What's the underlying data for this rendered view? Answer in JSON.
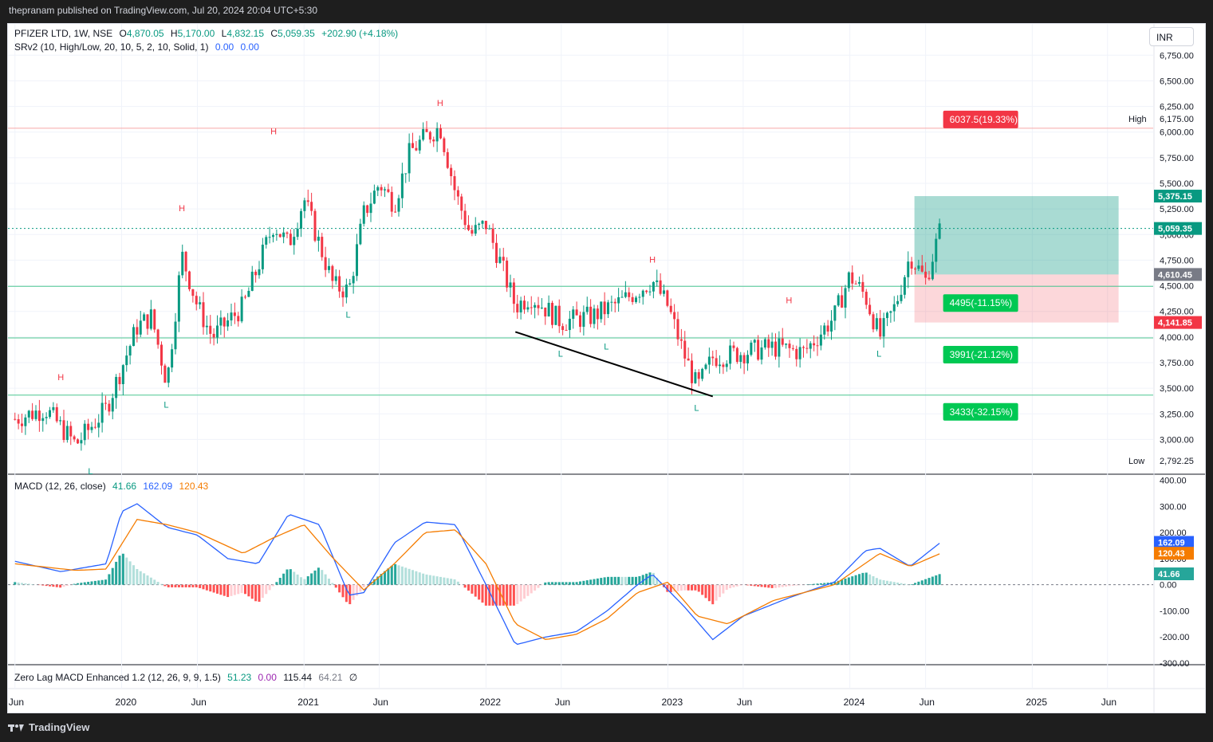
{
  "header": {
    "publisher": "thepranam published on TradingView.com, Jul 20, 2024 20:04 UTC+5:30"
  },
  "footer": {
    "brand": "TradingView"
  },
  "currency": "INR",
  "symbol_legend": {
    "name": "PFIZER LTD, 1W, NSE",
    "open_label": "O",
    "open": "4,870.05",
    "high_label": "H",
    "high": "5,170.00",
    "low_label": "L",
    "low": "4,832.15",
    "close_label": "C",
    "close": "5,059.35",
    "change": "+202.90 (+4.18%)"
  },
  "srv2_legend": {
    "text": "SRv2 (10, High/Low, 20, 10, 5, 2, 10, Solid, 1)",
    "v1": "0.00",
    "v2": "0.00"
  },
  "macd_legend": {
    "text": "MACD (12, 26, close)",
    "hist": "41.66",
    "macd": "162.09",
    "signal": "120.43"
  },
  "zl_legend": {
    "text": "Zero Lag MACD Enhanced 1.2 (12, 26, 9, 9, 1.5)",
    "v1": "51.23",
    "v2": "0.00",
    "v3": "115.44",
    "v4": "64.21",
    "v5": "∅"
  },
  "colors": {
    "up": "#089981",
    "down": "#f23645",
    "macd": "#2962ff",
    "signal": "#f57c00",
    "srline": "#4cc790",
    "resline": "#f7a8a8"
  },
  "chart_data": [
    {
      "type": "candlestick",
      "x_axis_labels": [
        "Jun",
        "2020",
        "Jun",
        "2021",
        "Jun",
        "2022",
        "Jun",
        "2023",
        "Jun",
        "2024",
        "Jun",
        "2025",
        "Jun"
      ],
      "y_ticks": [
        "6,750.00",
        "6,500.00",
        "6,250.00",
        "6,000.00",
        "5,750.00",
        "5,500.00",
        "5,250.00",
        "5,000.00",
        "4,750.00",
        "4,500.00",
        "4,250.00",
        "4,000.00",
        "3,750.00",
        "3,500.00",
        "3,250.00",
        "3,000.00"
      ],
      "ylim": [
        2700,
        6900
      ],
      "high_label": "High",
      "high_value": "6,175.00",
      "low_label": "Low",
      "low_value": "2,792.25",
      "price_badges": {
        "target": "5,375.15",
        "last": "5,059.35",
        "entry": "4,610.45",
        "stop": "4,141.85"
      },
      "support_resistance": [
        6037.5,
        4495,
        3991,
        3433
      ],
      "annotations": [
        {
          "text": "6037.5(19.33%)",
          "kind": "resistance"
        },
        {
          "text": "4495(-11.15%)",
          "kind": "support"
        },
        {
          "text": "3991(-21.12%)",
          "kind": "support"
        },
        {
          "text": "3433(-32.15%)",
          "kind": "support"
        }
      ],
      "pivots": [
        {
          "label": "H",
          "date": "2019-09",
          "value": 3500
        },
        {
          "label": "L",
          "date": "2019-11",
          "value": 2800
        },
        {
          "label": "H",
          "date": "2020-05",
          "value": 5150
        },
        {
          "label": "L",
          "date": "2020-04",
          "value": 3450
        },
        {
          "label": "H",
          "date": "2020-11",
          "value": 5900
        },
        {
          "label": "L",
          "date": "2021-04",
          "value": 4330
        },
        {
          "label": "H",
          "date": "2021-10",
          "value": 6175
        },
        {
          "label": "L",
          "date": "2022-06",
          "value": 3950
        },
        {
          "label": "L",
          "date": "2022-09",
          "value": 4020
        },
        {
          "label": "H",
          "date": "2022-12",
          "value": 4650
        },
        {
          "label": "L",
          "date": "2023-03",
          "value": 3420
        },
        {
          "label": "H",
          "date": "2023-09",
          "value": 4250
        },
        {
          "label": "L",
          "date": "2024-03",
          "value": 3950
        }
      ],
      "price_path": [
        [
          "2019-06",
          3200
        ],
        [
          "2019-08",
          3300
        ],
        [
          "2019-10",
          2950
        ],
        [
          "2019-12",
          3300
        ],
        [
          "2020-02",
          4100
        ],
        [
          "2020-03",
          4200
        ],
        [
          "2020-04",
          3550
        ],
        [
          "2020-05",
          4800
        ],
        [
          "2020-06",
          4300
        ],
        [
          "2020-07",
          4000
        ],
        [
          "2020-09",
          4300
        ],
        [
          "2020-11",
          5100
        ],
        [
          "2020-12",
          4900
        ],
        [
          "2021-01",
          5350
        ],
        [
          "2021-02",
          4900
        ],
        [
          "2021-03",
          4500
        ],
        [
          "2021-04",
          4450
        ],
        [
          "2021-05",
          5200
        ],
        [
          "2021-06",
          5500
        ],
        [
          "2021-07",
          5300
        ],
        [
          "2021-08",
          5800
        ],
        [
          "2021-09",
          5950
        ],
        [
          "2021-10",
          6050
        ],
        [
          "2021-11",
          5400
        ],
        [
          "2021-12",
          5000
        ],
        [
          "2022-01",
          5100
        ],
        [
          "2022-02",
          4700
        ],
        [
          "2022-03",
          4300
        ],
        [
          "2022-04",
          4400
        ],
        [
          "2022-06",
          4150
        ],
        [
          "2022-08",
          4200
        ],
        [
          "2022-10",
          4350
        ],
        [
          "2022-12",
          4550
        ],
        [
          "2023-01",
          4300
        ],
        [
          "2023-02",
          3850
        ],
        [
          "2023-03",
          3500
        ],
        [
          "2023-04",
          3800
        ],
        [
          "2023-06",
          3850
        ],
        [
          "2023-08",
          3900
        ],
        [
          "2023-10",
          3850
        ],
        [
          "2023-12",
          4200
        ],
        [
          "2024-01",
          4600
        ],
        [
          "2024-02",
          4400
        ],
        [
          "2024-03",
          4000
        ],
        [
          "2024-04",
          4300
        ],
        [
          "2024-05",
          4800
        ],
        [
          "2024-06",
          4550
        ],
        [
          "2024-07",
          5059
        ]
      ]
    },
    {
      "type": "line",
      "y_ticks": [
        "400.00",
        "300.00",
        "200.00",
        "100.00",
        "0.00",
        "-100.00",
        "-200.00",
        "-300.00"
      ],
      "ylim": [
        -300,
        420
      ],
      "series": [
        {
          "name": "MACD",
          "values": [
            [
              "2019-06",
              90
            ],
            [
              "2019-09",
              50
            ],
            [
              "2019-12",
              80
            ],
            [
              "2020-01",
              280
            ],
            [
              "2020-02",
              310
            ],
            [
              "2020-04",
              220
            ],
            [
              "2020-06",
              190
            ],
            [
              "2020-08",
              100
            ],
            [
              "2020-10",
              80
            ],
            [
              "2020-12",
              270
            ],
            [
              "2021-02",
              230
            ],
            [
              "2021-04",
              -40
            ],
            [
              "2021-05",
              -30
            ],
            [
              "2021-07",
              160
            ],
            [
              "2021-09",
              240
            ],
            [
              "2021-11",
              230
            ],
            [
              "2022-01",
              0
            ],
            [
              "2022-03",
              -230
            ],
            [
              "2022-05",
              -200
            ],
            [
              "2022-07",
              -180
            ],
            [
              "2022-09",
              -100
            ],
            [
              "2022-11",
              0
            ],
            [
              "2022-12",
              40
            ],
            [
              "2023-02",
              -80
            ],
            [
              "2023-04",
              -210
            ],
            [
              "2023-06",
              -120
            ],
            [
              "2023-09",
              -50
            ],
            [
              "2023-12",
              10
            ],
            [
              "2024-02",
              130
            ],
            [
              "2024-03",
              140
            ],
            [
              "2024-05",
              70
            ],
            [
              "2024-07",
              162
            ]
          ]
        },
        {
          "name": "Signal",
          "values": [
            [
              "2019-06",
              80
            ],
            [
              "2019-10",
              55
            ],
            [
              "2019-12",
              60
            ],
            [
              "2020-02",
              250
            ],
            [
              "2020-04",
              230
            ],
            [
              "2020-06",
              200
            ],
            [
              "2020-09",
              120
            ],
            [
              "2020-11",
              180
            ],
            [
              "2021-01",
              230
            ],
            [
              "2021-03",
              100
            ],
            [
              "2021-05",
              -20
            ],
            [
              "2021-07",
              80
            ],
            [
              "2021-09",
              200
            ],
            [
              "2021-11",
              210
            ],
            [
              "2022-01",
              80
            ],
            [
              "2022-03",
              -150
            ],
            [
              "2022-05",
              -210
            ],
            [
              "2022-07",
              -190
            ],
            [
              "2022-09",
              -130
            ],
            [
              "2022-11",
              -30
            ],
            [
              "2023-01",
              10
            ],
            [
              "2023-03",
              -120
            ],
            [
              "2023-05",
              -150
            ],
            [
              "2023-08",
              -60
            ],
            [
              "2023-12",
              0
            ],
            [
              "2024-03",
              120
            ],
            [
              "2024-05",
              70
            ],
            [
              "2024-07",
              120
            ]
          ]
        }
      ],
      "histogram": {
        "last": 41.66
      }
    }
  ]
}
